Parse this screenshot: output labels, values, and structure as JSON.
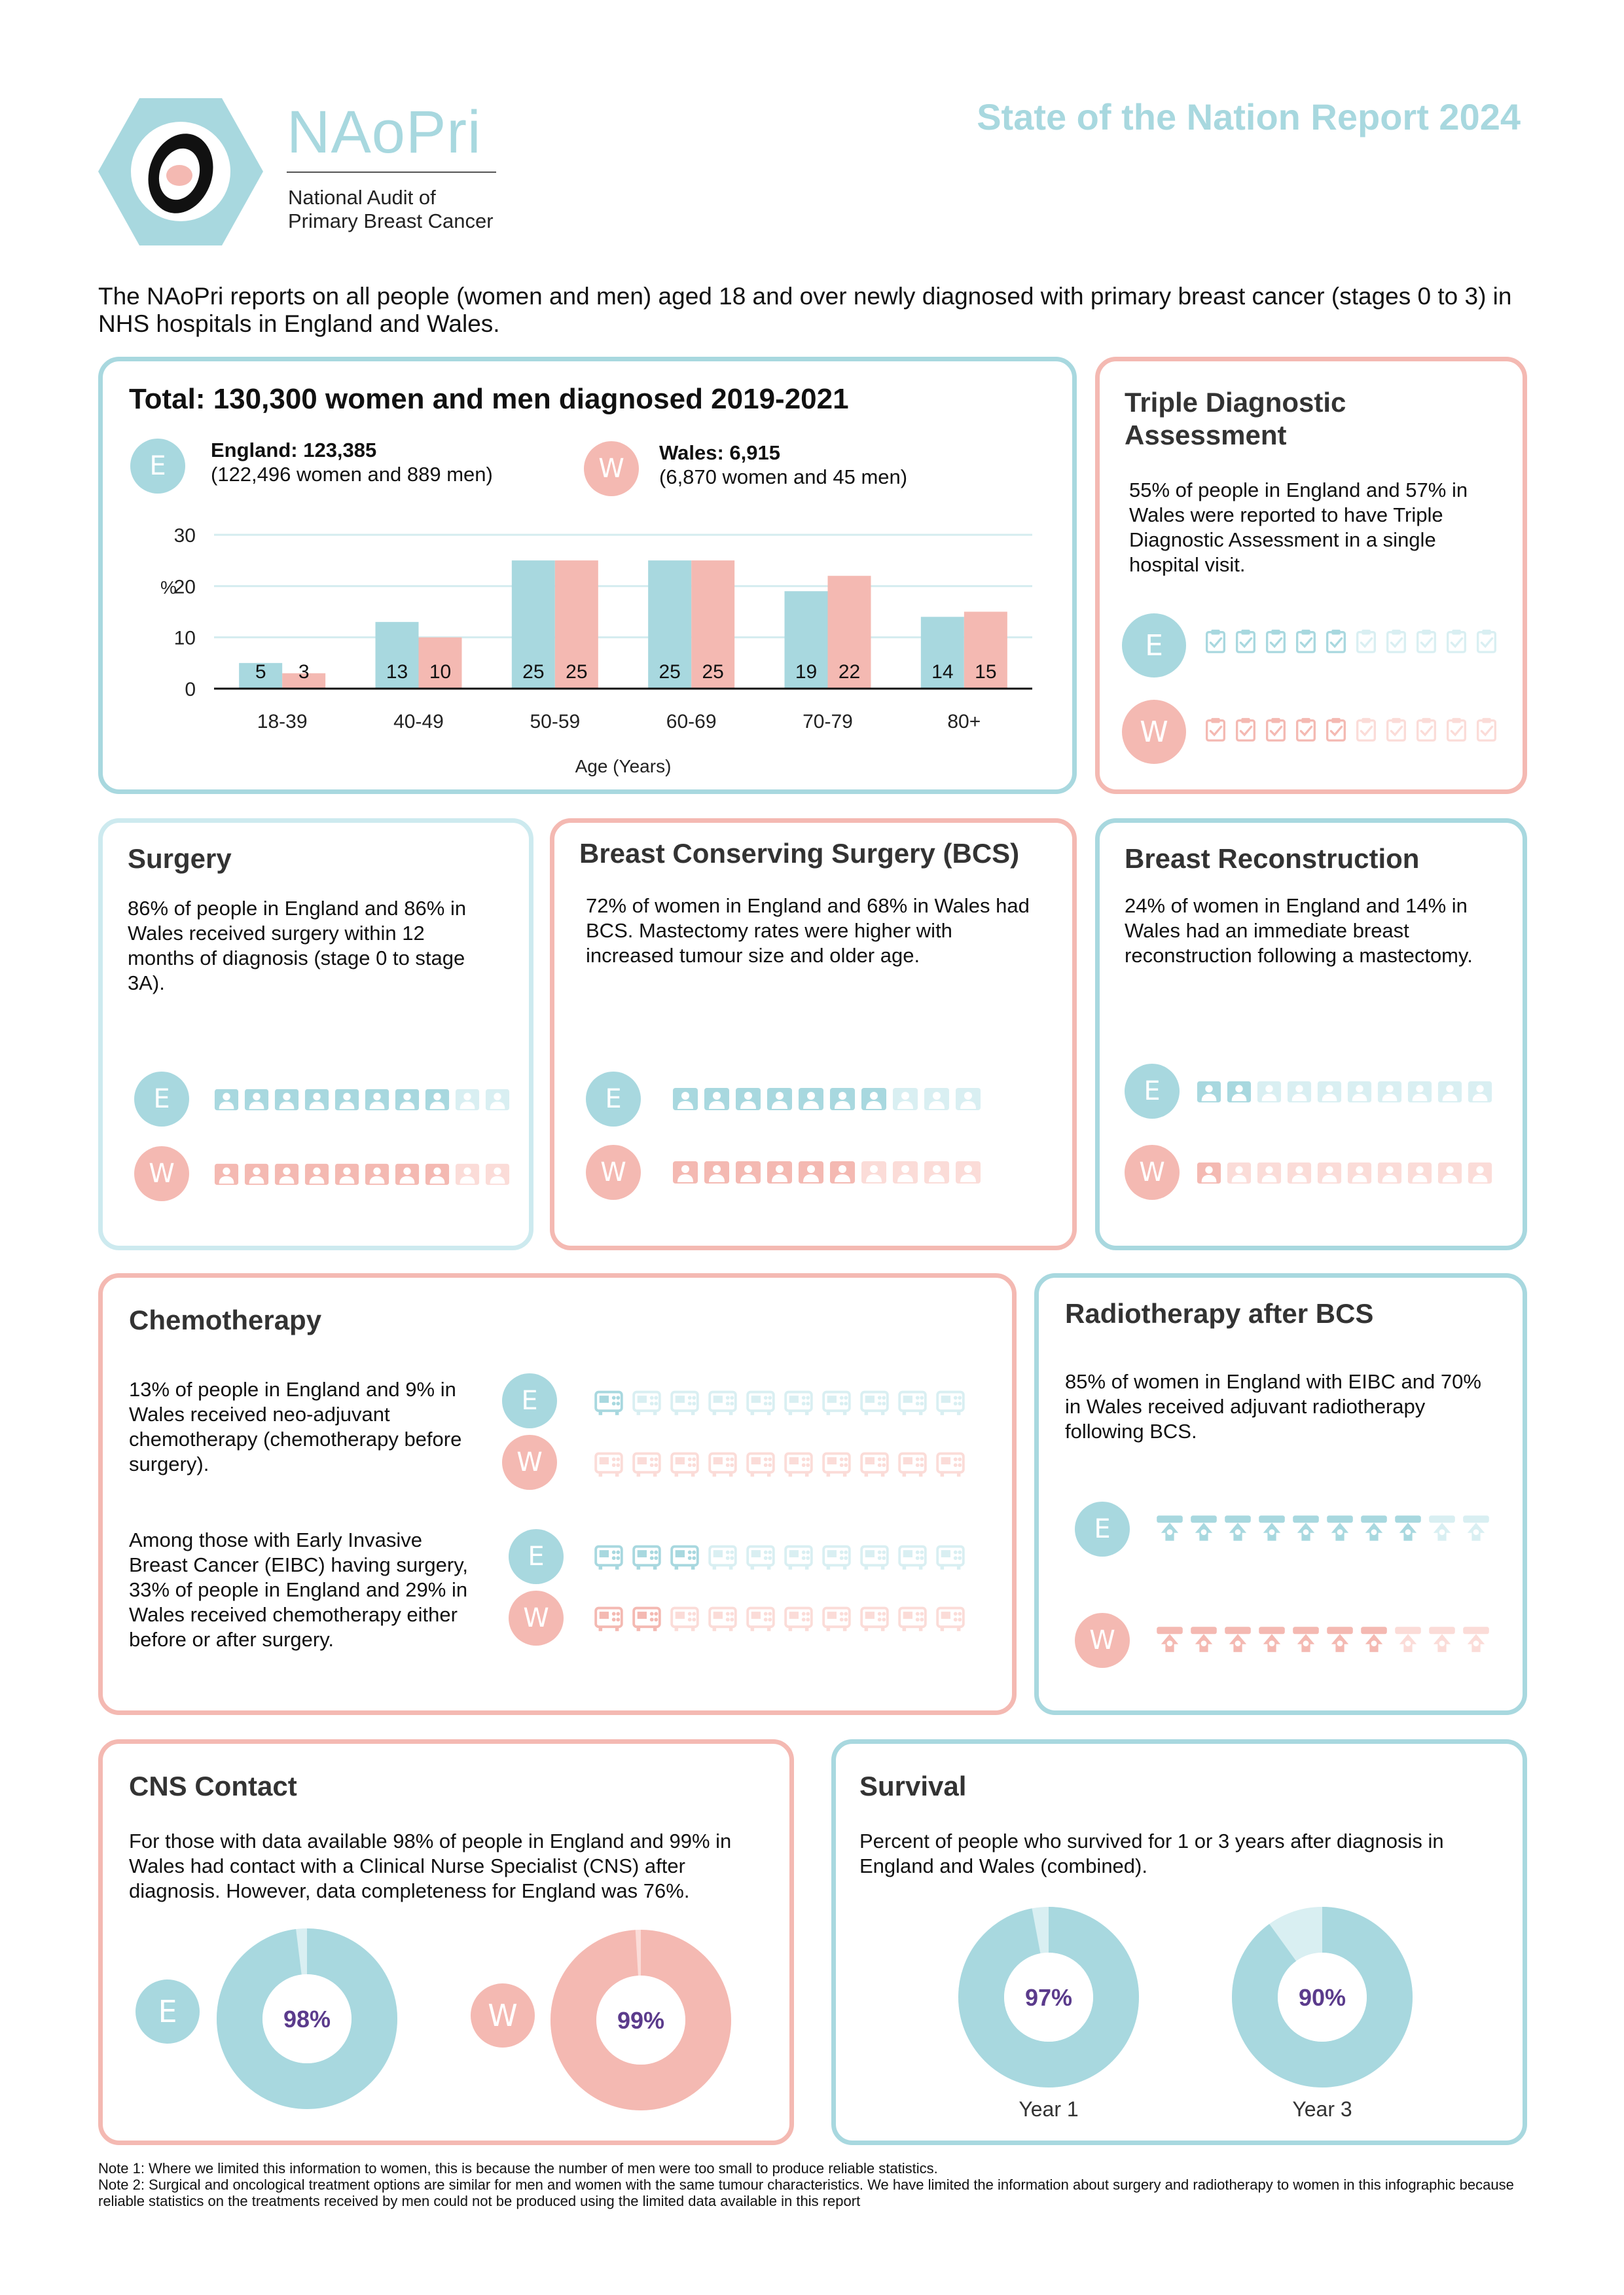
{
  "header": {
    "logo_text": "NAoPri",
    "logo_line1": "National Audit of",
    "logo_line2": "Primary Breast Cancer",
    "report_title": "State of the Nation Report 2024",
    "intro": "The NAoPri reports on all people (women and men) aged 18 and over newly diagnosed with primary breast cancer (stages 0 to 3) in NHS hospitals in England and Wales."
  },
  "colors": {
    "teal": "#a8d8df",
    "pink": "#f4b9b2",
    "teal_light": "#d9eff2",
    "pink_light": "#fbdcd8",
    "purple": "#5b3b8c"
  },
  "total": {
    "title": "Total: 130,300 women and men diagnosed 2019-2021",
    "england_badge": "E",
    "england_label": "England: 123,385",
    "england_detail": "(122,496 women and 889 men)",
    "wales_badge": "W",
    "wales_label": "Wales: 6,915",
    "wales_detail": "(6,870 women and 45 men)"
  },
  "chart_data": {
    "type": "bar",
    "categories": [
      "18-39",
      "40-49",
      "50-59",
      "60-69",
      "70-79",
      "80+"
    ],
    "series": [
      {
        "name": "England",
        "values": [
          5,
          13,
          25,
          25,
          19,
          14
        ],
        "color": "#a8d8df"
      },
      {
        "name": "Wales",
        "values": [
          3,
          10,
          25,
          25,
          22,
          15
        ],
        "color": "#f4b9b2"
      }
    ],
    "title": "",
    "xlabel": "Age (Years)",
    "ylabel": "%",
    "ylim": [
      0,
      30
    ],
    "yticks": [
      0,
      10,
      20,
      30
    ],
    "grid": true
  },
  "tda": {
    "title_line1": "Triple Diagnostic",
    "title_line2": "Assessment",
    "text": "55% of people in England and 57% in Wales were reported to have Triple Diagnostic Assessment in a single hospital visit.",
    "icon": "clipboard-check-icon",
    "england_pct": 55,
    "wales_pct": 57
  },
  "surgery": {
    "title": "Surgery",
    "text": "86% of people in England and 86% in Wales received surgery within 12 months of diagnosis (stage 0 to stage 3A).",
    "icon": "person-icon",
    "england_pct": 86,
    "wales_pct": 86
  },
  "bcs": {
    "title": "Breast Conserving Surgery (BCS)",
    "text": "72% of women in England and 68% in Wales had BCS. Mastectomy rates were higher with increased tumour size and older age.",
    "icon": "person-icon",
    "england_pct": 72,
    "wales_pct": 68
  },
  "recon": {
    "title": "Breast Reconstruction",
    "text": "24% of women in England and 14% in Wales had an immediate breast reconstruction following a mastectomy.",
    "icon": "person-icon",
    "england_pct": 24,
    "wales_pct": 14
  },
  "chemo": {
    "title": "Chemotherapy",
    "text1": "13% of people in England and 9% in Wales received neo-adjuvant chemotherapy (chemotherapy before surgery).",
    "text2": "Among those with Early Invasive Breast Cancer (EIBC) having surgery, 33% of people in England and 29% in Wales received chemotherapy either before or after surgery.",
    "icon": "infusion-pump-icon",
    "neo_england_pct": 13,
    "neo_wales_pct": 9,
    "eibc_england_pct": 33,
    "eibc_wales_pct": 29
  },
  "radio": {
    "title": "Radiotherapy after BCS",
    "text": "85% of women in England with EIBC and 70% in Wales received adjuvant radiotherapy following BCS.",
    "icon": "radiation-machine-icon",
    "england_pct": 85,
    "wales_pct": 70
  },
  "cns": {
    "title": "CNS Contact",
    "text": "For those with data available 98% of people in England and 99% in Wales had contact with a Clinical Nurse Specialist (CNS) after diagnosis. However, data completeness for England was 76%.",
    "england_value": 98,
    "england_label": "98%",
    "wales_value": 99,
    "wales_label": "99%"
  },
  "survival": {
    "title": "Survival",
    "text": "Percent of people who survived for 1 or 3 years after diagnosis in England and Wales (combined).",
    "year1_value": 97,
    "year1_label": "97%",
    "year1_caption": "Year 1",
    "year3_value": 90,
    "year3_label": "90%",
    "year3_caption": "Year 3"
  },
  "notes": {
    "note1": "Note 1: Where we limited this information to women, this is because the number of men were too small to produce reliable statistics.",
    "note2": "Note 2: Surgical and oncological treatment options are similar for men and women with the same tumour characteristics. We have limited the information about surgery and radiotherapy to women in this infographic because reliable statistics on the treatments received by men could not be produced using the limited data available in this report"
  }
}
